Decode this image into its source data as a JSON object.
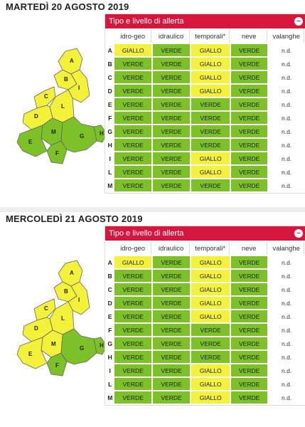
{
  "colors": {
    "header_red": "#d7163d",
    "verde": "#7cc127",
    "giallo": "#f3f13a",
    "na": "#ffffff"
  },
  "panel_title": "Tipo e livello di allerta",
  "columns": [
    "idro-geo",
    "idraulico",
    "temporali*",
    "neve",
    "valanghe"
  ],
  "days": [
    {
      "date": "MARTEDÌ 20 AGOSTO 2019",
      "zone_colors": {
        "A": "giallo",
        "B": "giallo",
        "C": "giallo",
        "D": "giallo",
        "E": "verde",
        "F": "verde",
        "G": "verde",
        "H": "verde",
        "I": "giallo",
        "L": "giallo",
        "M": "verde"
      },
      "rows": [
        {
          "zone": "A",
          "values": [
            "GIALLO",
            "VERDE",
            "GIALLO",
            "VERDE",
            "n.d."
          ]
        },
        {
          "zone": "B",
          "values": [
            "VERDE",
            "VERDE",
            "GIALLO",
            "VERDE",
            "n.d."
          ]
        },
        {
          "zone": "C",
          "values": [
            "VERDE",
            "VERDE",
            "GIALLO",
            "VERDE",
            "n.d."
          ]
        },
        {
          "zone": "D",
          "values": [
            "VERDE",
            "VERDE",
            "GIALLO",
            "VERDE",
            "n.d."
          ]
        },
        {
          "zone": "E",
          "values": [
            "VERDE",
            "VERDE",
            "VERDE",
            "VERDE",
            "n.d."
          ]
        },
        {
          "zone": "F",
          "values": [
            "VERDE",
            "VERDE",
            "VERDE",
            "VERDE",
            "n.d."
          ]
        },
        {
          "zone": "G",
          "values": [
            "VERDE",
            "VERDE",
            "VERDE",
            "VERDE",
            "n.d."
          ]
        },
        {
          "zone": "H",
          "values": [
            "VERDE",
            "VERDE",
            "VERDE",
            "VERDE",
            "n.d."
          ]
        },
        {
          "zone": "I",
          "values": [
            "VERDE",
            "VERDE",
            "GIALLO",
            "VERDE",
            "n.d."
          ]
        },
        {
          "zone": "L",
          "values": [
            "VERDE",
            "VERDE",
            "GIALLO",
            "VERDE",
            "n.d."
          ]
        },
        {
          "zone": "M",
          "values": [
            "VERDE",
            "VERDE",
            "VERDE",
            "VERDE",
            "n.d."
          ]
        }
      ]
    },
    {
      "date": "MERCOLEDÌ 21 AGOSTO 2019",
      "zone_colors": {
        "A": "giallo",
        "B": "giallo",
        "C": "giallo",
        "D": "giallo",
        "E": "giallo",
        "F": "verde",
        "G": "verde",
        "H": "verde",
        "I": "giallo",
        "L": "giallo",
        "M": "giallo"
      },
      "rows": [
        {
          "zone": "A",
          "values": [
            "GIALLO",
            "VERDE",
            "GIALLO",
            "VERDE",
            "n.d."
          ]
        },
        {
          "zone": "B",
          "values": [
            "VERDE",
            "VERDE",
            "GIALLO",
            "VERDE",
            "n.d."
          ]
        },
        {
          "zone": "C",
          "values": [
            "VERDE",
            "VERDE",
            "GIALLO",
            "VERDE",
            "n.d."
          ]
        },
        {
          "zone": "D",
          "values": [
            "VERDE",
            "VERDE",
            "GIALLO",
            "VERDE",
            "n.d."
          ]
        },
        {
          "zone": "E",
          "values": [
            "VERDE",
            "VERDE",
            "GIALLO",
            "VERDE",
            "n.d."
          ]
        },
        {
          "zone": "F",
          "values": [
            "VERDE",
            "VERDE",
            "VERDE",
            "VERDE",
            "n.d."
          ]
        },
        {
          "zone": "G",
          "values": [
            "VERDE",
            "VERDE",
            "VERDE",
            "VERDE",
            "n.d."
          ]
        },
        {
          "zone": "H",
          "values": [
            "VERDE",
            "VERDE",
            "VERDE",
            "VERDE",
            "n.d."
          ]
        },
        {
          "zone": "I",
          "values": [
            "VERDE",
            "VERDE",
            "GIALLO",
            "VERDE",
            "n.d."
          ]
        },
        {
          "zone": "L",
          "values": [
            "VERDE",
            "VERDE",
            "GIALLO",
            "VERDE",
            "n.d."
          ]
        },
        {
          "zone": "M",
          "values": [
            "VERDE",
            "VERDE",
            "GIALLO",
            "VERDE",
            "n.d."
          ]
        }
      ]
    }
  ]
}
